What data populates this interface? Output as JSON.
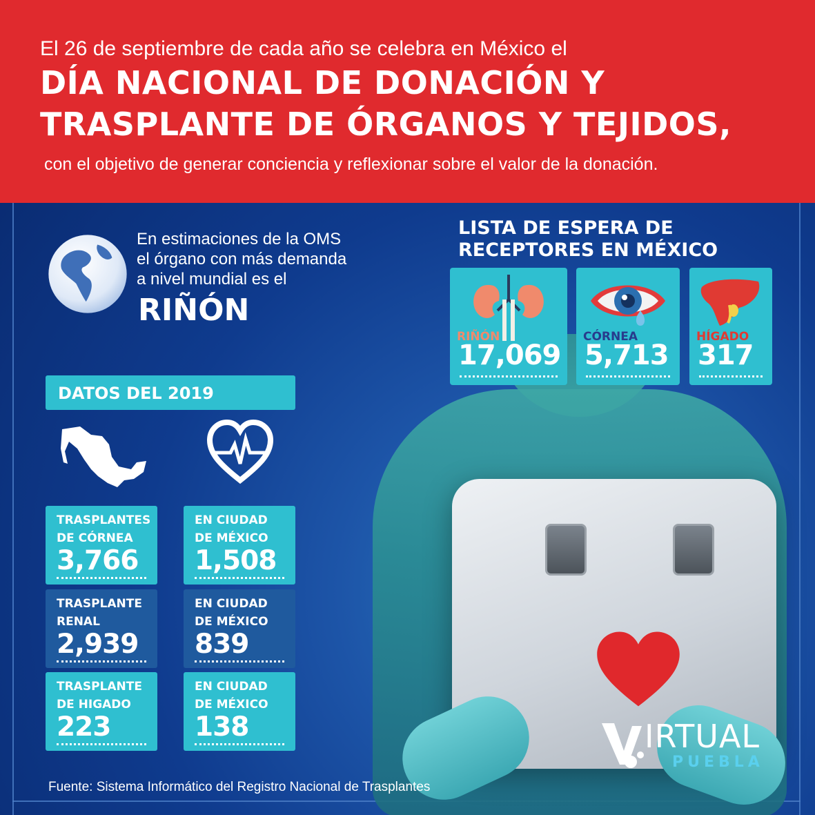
{
  "header": {
    "intro": "El 26 de septiembre de cada año se celebra en México el",
    "title_line1": "DÍA NACIONAL DE DONACIÓN Y",
    "title_line2": "TRASPLANTE DE ÓRGANOS Y TEJIDOS,",
    "subtitle": "con el objetivo de generar conciencia y reflexionar sobre el valor de la donación."
  },
  "oms": {
    "line1": "En estimaciones de la OMS",
    "line2": "el órgano con más demanda",
    "line3": "a nivel mundial es el",
    "organ": "RIÑÓN",
    "icon": "globe-icon"
  },
  "waiting_list": {
    "title_line1": "LISTA DE ESPERA DE",
    "title_line2": "RECEPTORES EN MÉXICO",
    "items": [
      {
        "organ": "RIÑÓN",
        "value": "17,069",
        "icon": "kidney-icon",
        "label_color": "#f08a6c"
      },
      {
        "organ": "CÓRNEA",
        "value": "5,713",
        "icon": "eye-icon",
        "label_color": "#283c8c"
      },
      {
        "organ": "HÍGADO",
        "value": "317",
        "icon": "liver-icon",
        "label_color": "#e03a33"
      }
    ]
  },
  "datos": {
    "title": "DATOS DEL 2019",
    "national_icon": "mexico-map-icon",
    "cdmx_icon": "heart-pulse-icon",
    "rows": [
      {
        "national_label_1": "TRASPLANTES",
        "national_label_2": "DE CÓRNEA",
        "national_value": "3,766",
        "cdmx_label_1": "EN CIUDAD",
        "cdmx_label_2": "DE MÉXICO",
        "cdmx_value": "1,508"
      },
      {
        "national_label_1": "TRASPLANTE",
        "national_label_2": "RENAL",
        "national_value": "2,939",
        "cdmx_label_1": "EN CIUDAD",
        "cdmx_label_2": "DE MÉXICO",
        "cdmx_value": "839"
      },
      {
        "national_label_1": "TRASPLANTE",
        "national_label_2": "DE HIGADO",
        "national_value": "223",
        "cdmx_label_1": "EN CIUDAD",
        "cdmx_label_2": "DE MÉXICO",
        "cdmx_value": "138"
      }
    ]
  },
  "source": "Fuente: Sistema Informático del Registro Nacional de Trasplantes",
  "logo": {
    "word": "IRTUAL",
    "sub": "PUEBLA"
  },
  "colors": {
    "header_red": "#e02a2e",
    "teal": "#2fbfd0",
    "navy_card": "#1f5a9e",
    "logo_cyan": "#5ad0ee"
  }
}
